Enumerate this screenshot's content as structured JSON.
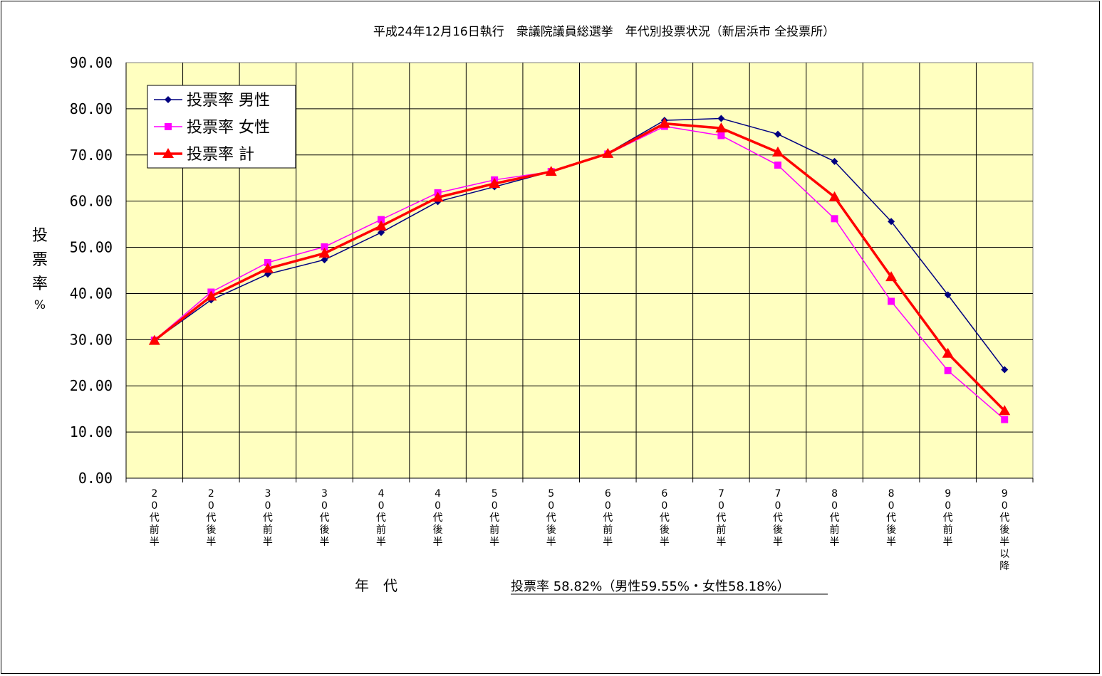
{
  "chart_data": {
    "type": "line",
    "title": "平成24年12月16日執行　衆議院議員総選挙　年代別投票状況（新居浜市 全投票所）",
    "xlabel": "年　代",
    "ylabel": [
      "投",
      "票",
      "率",
      "%"
    ],
    "note": "投票率 58.82%（男性59.55%・女性58.18%）",
    "ylim": [
      0,
      90
    ],
    "yticks": [
      "0.00",
      "10.00",
      "20.00",
      "30.00",
      "40.00",
      "50.00",
      "60.00",
      "70.00",
      "80.00",
      "90.00"
    ],
    "grid": true,
    "legend_position": "top-left",
    "categories": [
      [
        "2",
        "0",
        "代",
        "前",
        "半"
      ],
      [
        "2",
        "0",
        "代",
        "後",
        "半"
      ],
      [
        "3",
        "0",
        "代",
        "前",
        "半"
      ],
      [
        "3",
        "0",
        "代",
        "後",
        "半"
      ],
      [
        "4",
        "0",
        "代",
        "前",
        "半"
      ],
      [
        "4",
        "0",
        "代",
        "後",
        "半"
      ],
      [
        "5",
        "0",
        "代",
        "前",
        "半"
      ],
      [
        "5",
        "0",
        "代",
        "後",
        "半"
      ],
      [
        "6",
        "0",
        "代",
        "前",
        "半"
      ],
      [
        "6",
        "0",
        "代",
        "後",
        "半"
      ],
      [
        "7",
        "0",
        "代",
        "前",
        "半"
      ],
      [
        "7",
        "0",
        "代",
        "後",
        "半"
      ],
      [
        "8",
        "0",
        "代",
        "前",
        "半"
      ],
      [
        "8",
        "0",
        "代",
        "後",
        "半"
      ],
      [
        "9",
        "0",
        "代",
        "前",
        "半"
      ],
      [
        "9",
        "0",
        "代",
        "後",
        "半",
        "以",
        "降"
      ]
    ],
    "series": [
      {
        "name": "投票率 男性",
        "color": "#000080",
        "marker": "diamond",
        "width": 1.5,
        "values": [
          29.8,
          38.6,
          44.2,
          47.3,
          53.2,
          59.9,
          63.1,
          66.4,
          70.4,
          77.5,
          77.9,
          74.5,
          68.6,
          55.6,
          39.7,
          23.5
        ]
      },
      {
        "name": "投票率 女性",
        "color": "#ff00ff",
        "marker": "square",
        "width": 1.5,
        "values": [
          29.9,
          40.3,
          46.7,
          50.1,
          56.0,
          61.8,
          64.6,
          66.4,
          70.2,
          76.2,
          74.2,
          67.8,
          56.2,
          38.3,
          23.3,
          12.7
        ]
      },
      {
        "name": "投票率 計",
        "color": "#ff0000",
        "marker": "triangle",
        "width": 3.5,
        "values": [
          29.8,
          39.4,
          45.4,
          48.7,
          54.6,
          60.8,
          63.8,
          66.4,
          70.3,
          76.8,
          75.8,
          70.6,
          60.9,
          43.6,
          27.0,
          14.6
        ]
      }
    ]
  }
}
